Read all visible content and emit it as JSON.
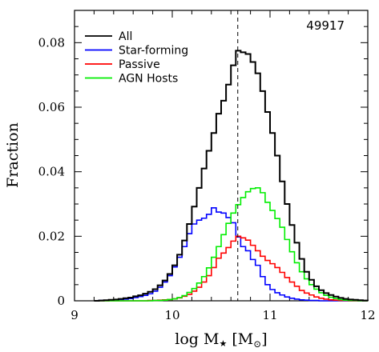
{
  "chart_data": {
    "type": "line",
    "step": true,
    "annotation": "49917",
    "xlabel": "log M",
    "xlabel_sub": "★",
    "xlabel_unit_open": "[M",
    "xlabel_unit_sub": "⊙",
    "xlabel_unit_close": "]",
    "ylabel": "Fraction",
    "xlim": [
      9,
      12
    ],
    "ylim": [
      0,
      0.09
    ],
    "xticks": [
      "9",
      "10",
      "11",
      "12"
    ],
    "xtick_values": [
      9,
      10,
      11,
      12
    ],
    "yticks": [
      "0",
      "0.02",
      "0.04",
      "0.06",
      "0.08"
    ],
    "ytick_values": [
      0,
      0.02,
      0.04,
      0.06,
      0.08
    ],
    "vline_x": 10.67,
    "legend_position": "top-left",
    "bin_edges": [
      9.2,
      9.25,
      9.3,
      9.35,
      9.4,
      9.45,
      9.5,
      9.55,
      9.6,
      9.65,
      9.7,
      9.75,
      9.8,
      9.85,
      9.9,
      9.95,
      10.0,
      10.05,
      10.1,
      10.15,
      10.2,
      10.25,
      10.3,
      10.35,
      10.4,
      10.45,
      10.5,
      10.55,
      10.6,
      10.65,
      10.7,
      10.75,
      10.8,
      10.85,
      10.9,
      10.95,
      11.0,
      11.05,
      11.1,
      11.15,
      11.2,
      11.25,
      11.3,
      11.35,
      11.4,
      11.45,
      11.5,
      11.55,
      11.6,
      11.65,
      11.7,
      11.75,
      11.8,
      11.85,
      11.9,
      11.95,
      12.0
    ],
    "series": [
      {
        "name": "All",
        "color": "#000000",
        "values": [
          0.0,
          0.0001,
          0.0002,
          0.0003,
          0.0004,
          0.0006,
          0.0008,
          0.001,
          0.0014,
          0.0017,
          0.0022,
          0.0028,
          0.0036,
          0.0048,
          0.0063,
          0.0083,
          0.011,
          0.0143,
          0.0187,
          0.0238,
          0.0292,
          0.035,
          0.041,
          0.0465,
          0.052,
          0.058,
          0.062,
          0.067,
          0.073,
          0.0775,
          0.077,
          0.0765,
          0.074,
          0.0705,
          0.065,
          0.0585,
          0.052,
          0.045,
          0.037,
          0.03,
          0.0235,
          0.018,
          0.013,
          0.009,
          0.0065,
          0.0045,
          0.0033,
          0.0024,
          0.0018,
          0.0013,
          0.0009,
          0.0006,
          0.0004,
          0.0003,
          0.0002,
          0.0001
        ]
      },
      {
        "name": "Star-forming",
        "color": "#0000ff",
        "values": [
          0.0,
          0.0001,
          0.0001,
          0.0002,
          0.0003,
          0.0004,
          0.0005,
          0.0007,
          0.001,
          0.0013,
          0.0017,
          0.0022,
          0.003,
          0.0042,
          0.0058,
          0.0078,
          0.0105,
          0.0135,
          0.0168,
          0.0208,
          0.0238,
          0.025,
          0.0256,
          0.0268,
          0.0288,
          0.0275,
          0.0272,
          0.0258,
          0.0242,
          0.0198,
          0.0168,
          0.0155,
          0.0128,
          0.011,
          0.0075,
          0.005,
          0.0035,
          0.0025,
          0.0018,
          0.0012,
          0.0008,
          0.0005,
          0.0003,
          0.0002,
          0.0001,
          0.0001,
          0.0,
          0.0,
          0.0,
          0.0,
          0.0,
          0.0,
          0.0,
          0.0,
          0.0,
          0.0
        ]
      },
      {
        "name": "Passive",
        "color": "#ff0000",
        "values": [
          0.0,
          0.0,
          0.0,
          0.0,
          0.0,
          0.0,
          0.0,
          0.0,
          0.0,
          0.0,
          0.0,
          0.0001,
          0.0001,
          0.0002,
          0.0003,
          0.0004,
          0.0006,
          0.0009,
          0.0014,
          0.002,
          0.003,
          0.0042,
          0.0058,
          0.0078,
          0.0103,
          0.0132,
          0.0148,
          0.0165,
          0.0185,
          0.02,
          0.0195,
          0.0188,
          0.0172,
          0.0155,
          0.0138,
          0.0125,
          0.0115,
          0.0103,
          0.0088,
          0.0072,
          0.0058,
          0.0045,
          0.0032,
          0.0024,
          0.0018,
          0.0012,
          0.0008,
          0.0005,
          0.0003,
          0.0002,
          0.0001,
          0.0001,
          0.0,
          0.0,
          0.0,
          0.0
        ]
      },
      {
        "name": "AGN Hosts",
        "color": "#00ee00",
        "values": [
          0.0,
          0.0,
          0.0,
          0.0,
          0.0,
          0.0,
          0.0,
          0.0,
          0.0,
          0.0,
          0.0,
          0.0,
          0.0001,
          0.0001,
          0.0002,
          0.0004,
          0.0006,
          0.001,
          0.0016,
          0.0026,
          0.0038,
          0.0055,
          0.0075,
          0.0102,
          0.0135,
          0.0168,
          0.0205,
          0.024,
          0.0272,
          0.0298,
          0.032,
          0.0338,
          0.0348,
          0.035,
          0.0335,
          0.0305,
          0.028,
          0.0255,
          0.0228,
          0.019,
          0.0152,
          0.0118,
          0.009,
          0.0068,
          0.005,
          0.0036,
          0.0025,
          0.0017,
          0.0011,
          0.0007,
          0.0004,
          0.0002,
          0.0001,
          0.0001,
          0.0,
          0.0
        ]
      }
    ]
  }
}
